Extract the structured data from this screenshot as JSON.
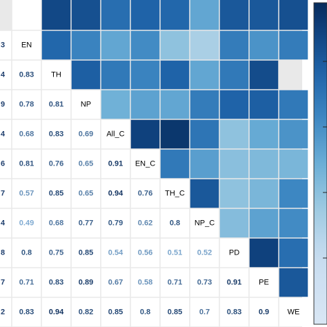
{
  "chart_data": {
    "type": "heatmap",
    "title": "",
    "variables": [
      "EN",
      "TH",
      "NP",
      "All_C",
      "EN_C",
      "TH_C",
      "NP_C",
      "PD",
      "PE",
      "WE"
    ],
    "left_row_labels_partial": [
      "3",
      "4",
      "9",
      "4",
      "6",
      "7",
      "4",
      "8",
      "7",
      "2"
    ],
    "top_row_partial": [
      0.92,
      0.9,
      0.82,
      0.85,
      0.84,
      0.67,
      0.88,
      0.88,
      0.9
    ],
    "lower_triangle_values": [
      [
        0.83
      ],
      [
        0.78,
        0.81
      ],
      [
        0.68,
        0.83,
        0.69
      ],
      [
        0.81,
        0.76,
        0.65,
        0.91
      ],
      [
        0.57,
        0.85,
        0.65,
        0.94,
        0.76
      ],
      [
        0.49,
        0.68,
        0.77,
        0.79,
        0.62,
        0.8
      ],
      [
        0.8,
        0.75,
        0.85,
        0.54,
        0.56,
        0.51,
        0.52
      ],
      [
        0.71,
        0.83,
        0.89,
        0.67,
        0.58,
        0.71,
        0.73,
        0.91
      ],
      [
        0.83,
        0.94,
        0.82,
        0.85,
        0.8,
        0.85,
        0.7,
        0.83,
        0.9
      ]
    ],
    "upper_triangle_shading": [
      [
        0.84,
        0.76,
        0.67,
        0.74,
        0.58,
        0.52,
        0.78,
        0.72,
        0.78
      ],
      [
        0.86,
        0.79,
        0.76,
        0.85,
        0.67,
        0.79,
        0.91
      ],
      [
        0.64,
        0.68,
        0.67,
        0.78,
        0.85,
        0.86,
        0.79
      ],
      [
        0.94,
        0.97,
        0.8,
        0.58,
        0.66,
        0.72
      ],
      [
        0.79,
        0.69,
        0.59,
        0.61,
        0.62
      ],
      [
        0.88,
        0.58,
        0.62,
        0.75
      ],
      [
        0.6,
        0.68,
        0.74
      ],
      [
        0.94,
        0.82
      ],
      [
        0.88
      ]
    ],
    "colors": {
      "low": "#ffffff",
      "high": "#0d3d78",
      "low_text": "#8ab6dc",
      "high_text": "#0d2e5c"
    },
    "legend": "right"
  }
}
